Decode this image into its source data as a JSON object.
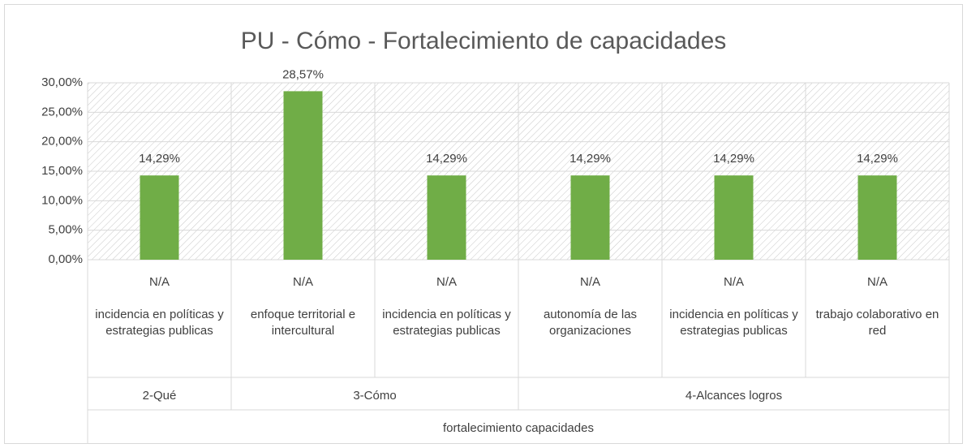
{
  "chart_data": {
    "type": "bar",
    "title": "PU - Cómo - Fortalecimiento de capacidades",
    "levels": [
      "N/A",
      "N/A",
      "N/A",
      "N/A",
      "N/A",
      "N/A"
    ],
    "categories": [
      "incidencia en políticas y estrategias publicas",
      "enfoque territorial e intercultural",
      "incidencia en políticas y estrategias publicas",
      "autonomía de las organizaciones",
      "incidencia en políticas y estrategias publicas",
      "trabajo colaborativo en red"
    ],
    "groups": [
      "2-Qué",
      "3-Cómo",
      null,
      "4-Alcances logros",
      null,
      null
    ],
    "supergroups": [
      "fortalecimiento capacidades",
      null,
      null,
      null,
      null,
      null
    ],
    "values": [
      14.29,
      28.57,
      14.29,
      14.29,
      14.29,
      14.29
    ],
    "value_labels": [
      "14,29%",
      "28,57%",
      "14,29%",
      "14,29%",
      "14,29%",
      "14,29%"
    ],
    "color": "#70ad47",
    "ylim": [
      0,
      30
    ],
    "yticks": [
      {
        "value": 0,
        "label": "0,00%"
      },
      {
        "value": 5,
        "label": "5,00%"
      },
      {
        "value": 10,
        "label": "10,00%"
      },
      {
        "value": 15,
        "label": "15,00%"
      },
      {
        "value": 20,
        "label": "20,00%"
      },
      {
        "value": 25,
        "label": "25,00%"
      },
      {
        "value": 30,
        "label": "30,00%"
      }
    ],
    "grid": true
  }
}
